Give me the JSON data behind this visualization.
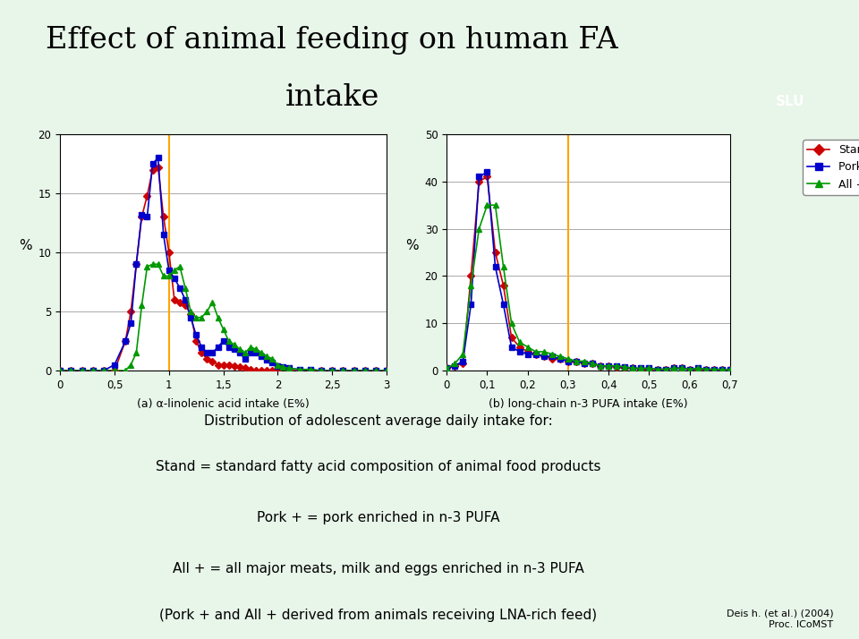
{
  "title_line1": "Effect of animal feeding on human FA",
  "title_line2": "intake",
  "bg_color": "#e8f5e9",
  "plot_bg": "#ffffff",
  "chart_a": {
    "xlabel": "(a) α-linolenic acid intake (E%)",
    "ylabel": "%",
    "xlim": [
      0,
      3
    ],
    "ylim": [
      0,
      20
    ],
    "yticks": [
      0,
      5,
      10,
      15,
      20
    ],
    "xticks": [
      0,
      0.5,
      1,
      1.5,
      2,
      2.5,
      3
    ],
    "xtick_labels": [
      "0",
      "0,5",
      "1",
      "1,5",
      "2",
      "2,5",
      "3"
    ],
    "vline_x": 1.0,
    "vline_color": "#FFA500",
    "stand_x": [
      0,
      0.1,
      0.2,
      0.3,
      0.4,
      0.5,
      0.6,
      0.65,
      0.7,
      0.75,
      0.8,
      0.85,
      0.9,
      0.95,
      1.0,
      1.05,
      1.1,
      1.15,
      1.2,
      1.25,
      1.3,
      1.35,
      1.4,
      1.45,
      1.5,
      1.55,
      1.6,
      1.65,
      1.7,
      1.75,
      1.8,
      1.85,
      1.9,
      1.95,
      2.0,
      2.1,
      2.2,
      2.3,
      2.4,
      2.5,
      2.6,
      2.7,
      2.8,
      2.9,
      3.0
    ],
    "stand_y": [
      0,
      0,
      0,
      0,
      0,
      0,
      2.5,
      5,
      9,
      13,
      14.8,
      17,
      17.2,
      13,
      10,
      6,
      5.8,
      5.5,
      4.8,
      2.5,
      1.5,
      1.0,
      0.8,
      0.5,
      0.5,
      0.5,
      0.4,
      0.3,
      0.2,
      0.1,
      0,
      0,
      0,
      0,
      0,
      0,
      0,
      0,
      0,
      0,
      0,
      0,
      0,
      0,
      0
    ],
    "pork_x": [
      0,
      0.1,
      0.2,
      0.3,
      0.4,
      0.5,
      0.6,
      0.65,
      0.7,
      0.75,
      0.8,
      0.85,
      0.9,
      0.95,
      1.0,
      1.05,
      1.1,
      1.15,
      1.2,
      1.25,
      1.3,
      1.35,
      1.4,
      1.45,
      1.5,
      1.55,
      1.6,
      1.65,
      1.7,
      1.75,
      1.8,
      1.85,
      1.9,
      1.95,
      2.0,
      2.05,
      2.1,
      2.2,
      2.3,
      2.4,
      2.5,
      2.6,
      2.7,
      2.8,
      2.9,
      3.0
    ],
    "pork_y": [
      0,
      0,
      0,
      0,
      0,
      0.5,
      2.5,
      4,
      9,
      13.2,
      13,
      17.5,
      18,
      11.5,
      8.5,
      7.8,
      7,
      6,
      4.5,
      3,
      2,
      1.5,
      1.5,
      2,
      2.5,
      2.0,
      1.8,
      1.5,
      1.0,
      1.5,
      1.5,
      1.2,
      0.9,
      0.7,
      0.4,
      0.3,
      0.2,
      0.1,
      0.1,
      0,
      0,
      0,
      0,
      0,
      0,
      0
    ],
    "allp_x": [
      0,
      0.1,
      0.2,
      0.3,
      0.4,
      0.5,
      0.6,
      0.65,
      0.7,
      0.75,
      0.8,
      0.85,
      0.9,
      0.95,
      1.0,
      1.05,
      1.1,
      1.15,
      1.2,
      1.25,
      1.3,
      1.35,
      1.4,
      1.45,
      1.5,
      1.55,
      1.6,
      1.65,
      1.7,
      1.75,
      1.8,
      1.85,
      1.9,
      1.95,
      2.0,
      2.05,
      2.1,
      2.2,
      2.3,
      2.4,
      2.5,
      2.6,
      2.7,
      2.8,
      2.9,
      3.0
    ],
    "allp_y": [
      0,
      0,
      0,
      0,
      0,
      0,
      0,
      0.5,
      1.5,
      5.5,
      8.8,
      9,
      9,
      8,
      8,
      8.5,
      8.8,
      7,
      5,
      4.5,
      4.5,
      5,
      5.8,
      4.5,
      3.5,
      2.5,
      2.2,
      1.8,
      1.5,
      2.0,
      1.8,
      1.5,
      1.2,
      1.0,
      0.5,
      0.3,
      0.2,
      0.1,
      0.1,
      0,
      0,
      0,
      0,
      0,
      0,
      0
    ]
  },
  "chart_b": {
    "xlabel": "(b) long-chain n-3 PUFA intake (E%)",
    "ylabel": "%",
    "xlim": [
      0,
      0.7
    ],
    "ylim": [
      0,
      50
    ],
    "yticks": [
      0,
      10,
      20,
      30,
      40,
      50
    ],
    "xticks": [
      0,
      0.1,
      0.2,
      0.3,
      0.4,
      0.5,
      0.6,
      0.7
    ],
    "xtick_labels": [
      "0",
      "0,1",
      "0,2",
      "0,3",
      "0,4",
      "0,5",
      "0,6",
      "0,7"
    ],
    "vline_x": 0.3,
    "vline_color": "#FFA500",
    "stand_x": [
      0,
      0.02,
      0.04,
      0.06,
      0.08,
      0.1,
      0.12,
      0.14,
      0.16,
      0.18,
      0.2,
      0.22,
      0.24,
      0.26,
      0.28,
      0.3,
      0.32,
      0.34,
      0.36,
      0.38,
      0.4,
      0.42,
      0.44,
      0.46,
      0.48,
      0.5,
      0.52,
      0.54,
      0.56,
      0.58,
      0.6,
      0.62,
      0.64,
      0.66,
      0.68,
      0.7
    ],
    "stand_y": [
      0.5,
      1.0,
      1.5,
      20,
      40,
      41,
      25,
      18,
      7,
      5,
      4,
      3.5,
      3,
      2.5,
      2.5,
      2,
      2,
      1.5,
      1.5,
      1,
      1,
      0.8,
      0.5,
      0.5,
      0.3,
      0.3,
      0.2,
      0.2,
      0.5,
      0.5,
      0.3,
      0.3,
      0.2,
      0.2,
      0.2,
      0.2
    ],
    "pork_x": [
      0,
      0.02,
      0.04,
      0.06,
      0.08,
      0.1,
      0.12,
      0.14,
      0.16,
      0.18,
      0.2,
      0.22,
      0.24,
      0.26,
      0.28,
      0.3,
      0.32,
      0.34,
      0.36,
      0.38,
      0.4,
      0.42,
      0.44,
      0.46,
      0.48,
      0.5,
      0.52,
      0.54,
      0.56,
      0.58,
      0.6,
      0.62,
      0.64,
      0.66,
      0.68,
      0.7
    ],
    "pork_y": [
      0.5,
      1.0,
      2.0,
      14,
      41,
      42,
      22,
      14,
      5,
      4,
      3.5,
      3.5,
      3,
      3,
      2.5,
      2,
      2,
      1.5,
      1.5,
      1,
      1,
      1,
      0.8,
      0.5,
      0.5,
      0.5,
      0.3,
      0.3,
      0.5,
      0.5,
      0.3,
      0.5,
      0.3,
      0.3,
      0.3,
      0.2
    ],
    "allp_x": [
      0,
      0.02,
      0.04,
      0.06,
      0.08,
      0.1,
      0.12,
      0.14,
      0.16,
      0.18,
      0.2,
      0.22,
      0.24,
      0.26,
      0.28,
      0.3,
      0.32,
      0.34,
      0.36,
      0.38,
      0.4,
      0.42,
      0.44,
      0.46,
      0.48,
      0.5,
      0.52,
      0.54,
      0.56,
      0.58,
      0.6,
      0.62,
      0.64,
      0.66,
      0.68,
      0.7
    ],
    "allp_y": [
      0.5,
      1.5,
      3.5,
      18,
      30,
      35,
      35,
      22,
      10,
      6,
      5,
      4,
      4,
      3.5,
      3,
      2.5,
      2,
      2,
      1.5,
      1,
      1,
      1,
      0.8,
      0.5,
      0.5,
      0.5,
      0.3,
      0.3,
      0.5,
      0.5,
      0.3,
      0.5,
      0.3,
      0.3,
      0.2,
      0.2
    ]
  },
  "legend": {
    "stand_label": "Stand",
    "pork_label": "Pork +",
    "allp_label": "All +",
    "stand_color": "#CC0000",
    "pork_color": "#0000CC",
    "allp_color": "#009900",
    "marker_stand": "D",
    "marker_pork": "s",
    "marker_allp": "^"
  },
  "text_lines": [
    "Distribution of adolescent average daily intake for:",
    "Stand = standard fatty acid composition of animal food products",
    "Pork + = pork enriched in n-3 PUFA",
    "All + = all major meats, milk and eggs enriched in n-3 PUFA",
    "(Pork + and All + derived from animals receiving LNA-rich feed)"
  ],
  "text_source": "Deis h. (et al.) (2004)\nProc. ICoMST"
}
